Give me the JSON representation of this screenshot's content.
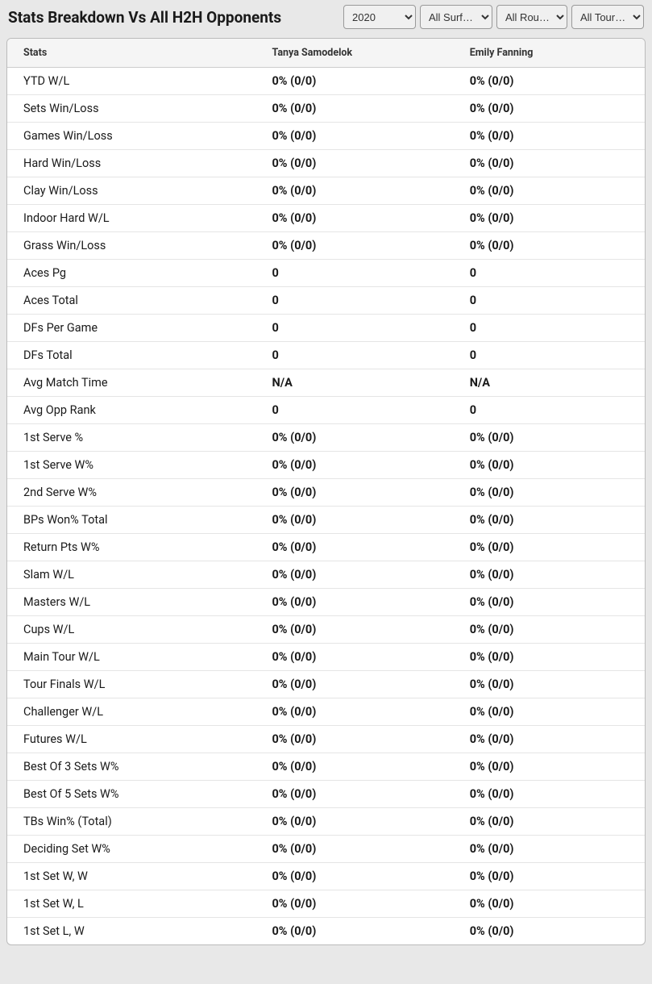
{
  "header": {
    "title": "Stats Breakdown Vs All H2H Opponents"
  },
  "filters": {
    "year": {
      "selected": "2020"
    },
    "surface": {
      "selected": "All Surf…"
    },
    "round": {
      "selected": "All Rou…"
    },
    "tour": {
      "selected": "All Tour…"
    }
  },
  "table": {
    "columns": [
      "Stats",
      "Tanya Samodelok",
      "Emily Fanning"
    ],
    "rows": [
      [
        "YTD W/L",
        "0% (0/0)",
        "0% (0/0)"
      ],
      [
        "Sets Win/Loss",
        "0% (0/0)",
        "0% (0/0)"
      ],
      [
        "Games Win/Loss",
        "0% (0/0)",
        "0% (0/0)"
      ],
      [
        "Hard Win/Loss",
        "0% (0/0)",
        "0% (0/0)"
      ],
      [
        "Clay Win/Loss",
        "0% (0/0)",
        "0% (0/0)"
      ],
      [
        "Indoor Hard W/L",
        "0% (0/0)",
        "0% (0/0)"
      ],
      [
        "Grass Win/Loss",
        "0% (0/0)",
        "0% (0/0)"
      ],
      [
        "Aces Pg",
        "0",
        "0"
      ],
      [
        "Aces Total",
        "0",
        "0"
      ],
      [
        "DFs Per Game",
        "0",
        "0"
      ],
      [
        "DFs Total",
        "0",
        "0"
      ],
      [
        "Avg Match Time",
        "N/A",
        "N/A"
      ],
      [
        "Avg Opp Rank",
        "0",
        "0"
      ],
      [
        "1st Serve %",
        "0% (0/0)",
        "0% (0/0)"
      ],
      [
        "1st Serve W%",
        "0% (0/0)",
        "0% (0/0)"
      ],
      [
        "2nd Serve W%",
        "0% (0/0)",
        "0% (0/0)"
      ],
      [
        "BPs Won% Total",
        "0% (0/0)",
        "0% (0/0)"
      ],
      [
        "Return Pts W%",
        "0% (0/0)",
        "0% (0/0)"
      ],
      [
        "Slam W/L",
        "0% (0/0)",
        "0% (0/0)"
      ],
      [
        "Masters W/L",
        "0% (0/0)",
        "0% (0/0)"
      ],
      [
        "Cups W/L",
        "0% (0/0)",
        "0% (0/0)"
      ],
      [
        "Main Tour W/L",
        "0% (0/0)",
        "0% (0/0)"
      ],
      [
        "Tour Finals W/L",
        "0% (0/0)",
        "0% (0/0)"
      ],
      [
        "Challenger W/L",
        "0% (0/0)",
        "0% (0/0)"
      ],
      [
        "Futures W/L",
        "0% (0/0)",
        "0% (0/0)"
      ],
      [
        "Best Of 3 Sets W%",
        "0% (0/0)",
        "0% (0/0)"
      ],
      [
        "Best Of 5 Sets W%",
        "0% (0/0)",
        "0% (0/0)"
      ],
      [
        "TBs Win% (Total)",
        "0% (0/0)",
        "0% (0/0)"
      ],
      [
        "Deciding Set W%",
        "0% (0/0)",
        "0% (0/0)"
      ],
      [
        "1st Set W, W",
        "0% (0/0)",
        "0% (0/0)"
      ],
      [
        "1st Set W, L",
        "0% (0/0)",
        "0% (0/0)"
      ],
      [
        "1st Set L, W",
        "0% (0/0)",
        "0% (0/0)"
      ]
    ]
  },
  "colors": {
    "background": "#e8e8e8",
    "table_bg": "#ffffff",
    "header_bg": "#f5f5f5",
    "border": "#cccccc",
    "row_border": "#e5e5e5",
    "text": "#1a1a1a"
  }
}
